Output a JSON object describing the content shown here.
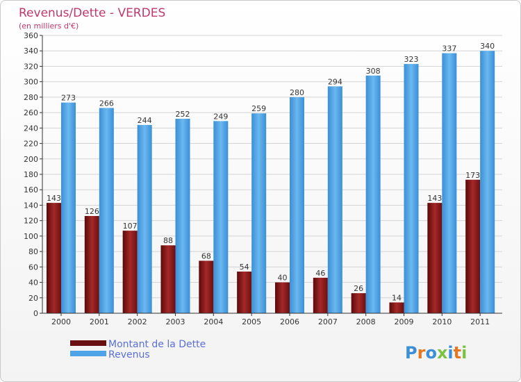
{
  "chart_data": {
    "type": "bar",
    "title": "Revenus/Dette - VERDES",
    "subtitle": "(en milliers d'€)",
    "categories": [
      "2000",
      "2001",
      "2002",
      "2003",
      "2004",
      "2005",
      "2006",
      "2007",
      "2008",
      "2009",
      "2010",
      "2011"
    ],
    "series": [
      {
        "name": "Montant de la Dette",
        "color": "#7a1414",
        "values": [
          143,
          126,
          107,
          88,
          68,
          54,
          40,
          46,
          26,
          14,
          143,
          173
        ]
      },
      {
        "name": "Revenus",
        "color": "#4da3e6",
        "values": [
          273,
          266,
          244,
          252,
          249,
          259,
          280,
          294,
          308,
          323,
          337,
          340
        ]
      }
    ],
    "ylim": [
      0,
      360
    ],
    "ytick_step": 20,
    "grid": true,
    "legend_position": "bottom-left"
  },
  "branding": {
    "logo_text": "Proxiti",
    "logo_colors": [
      "#3b8ed8",
      "#e8761e",
      "#3b8ed8",
      "#7cc242",
      "#3b8ed8",
      "#e8761e",
      "#7cc242"
    ]
  }
}
